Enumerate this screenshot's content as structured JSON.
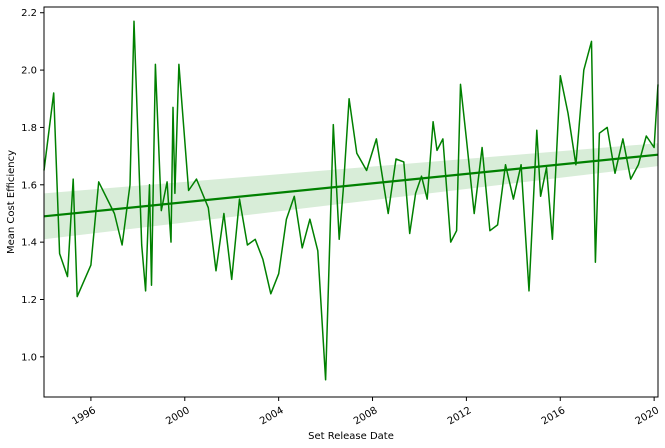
{
  "chart_data": {
    "type": "line",
    "title": "",
    "xlabel": "Set Release Date",
    "ylabel": "Mean Cost Efficiency",
    "xlim": [
      "1994-01-01",
      "2020-03-01"
    ],
    "ylim": [
      0.86,
      2.22
    ],
    "x_ticks": [
      "1996-01-01",
      "2000-01-01",
      "2004-01-01",
      "2008-01-01",
      "2012-01-01",
      "2016-01-01",
      "2020-01-01"
    ],
    "x_tick_labels": [
      "1996",
      "2000",
      "2004",
      "2008",
      "2012",
      "2016",
      "2020"
    ],
    "y_ticks": [
      1.0,
      1.2,
      1.4,
      1.6,
      1.8,
      2.0,
      2.2
    ],
    "y_tick_labels": [
      "1.0",
      "1.2",
      "1.4",
      "1.6",
      "1.8",
      "2.0",
      "2.2"
    ],
    "grid": false,
    "colors": {
      "line": "#008000",
      "trend": "#008000",
      "band": "#90cc90"
    },
    "series": [
      {
        "x": [
          "1994-01-01",
          "1994-06-01",
          "1994-09-01",
          "1995-01-01",
          "1995-04-01",
          "1995-06-01",
          "1996-01-01",
          "1996-05-01",
          "1997-01-01",
          "1997-05-01",
          "1997-09-01",
          "1997-11-01",
          "1998-03-01",
          "1998-05-01",
          "1998-07-01",
          "1998-08-01",
          "1998-10-01",
          "1999-01-01",
          "1999-04-01",
          "1999-06-01",
          "1999-07-01",
          "1999-08-01",
          "1999-10-01",
          "2000-03-01",
          "2000-07-01",
          "2001-01-01",
          "2001-05-01",
          "2001-09-01",
          "2002-01-01",
          "2002-05-01",
          "2002-09-01",
          "2003-01-01",
          "2003-05-01",
          "2003-09-01",
          "2004-01-01",
          "2004-05-01",
          "2004-09-01",
          "2005-01-01",
          "2005-05-01",
          "2005-09-01",
          "2006-01-01",
          "2006-05-01",
          "2006-08-01",
          "2006-10-01",
          "2007-01-01",
          "2007-05-01",
          "2007-10-01",
          "2008-03-01",
          "2008-09-01",
          "2009-01-01",
          "2009-05-01",
          "2009-08-01",
          "2009-11-01",
          "2010-02-01",
          "2010-05-01",
          "2010-08-01",
          "2010-10-01",
          "2011-01-01",
          "2011-05-01",
          "2011-08-01",
          "2011-10-01",
          "2012-01-01",
          "2012-05-01",
          "2012-09-01",
          "2013-01-01",
          "2013-05-01",
          "2013-09-01",
          "2014-01-01",
          "2014-05-01",
          "2014-09-01",
          "2015-01-01",
          "2015-03-01",
          "2015-06-01",
          "2015-09-01",
          "2016-01-01",
          "2016-05-01",
          "2016-09-01",
          "2017-01-01",
          "2017-05-01",
          "2017-07-01",
          "2017-09-01",
          "2018-01-01",
          "2018-05-01",
          "2018-09-01",
          "2019-01-01",
          "2019-05-01",
          "2019-09-01",
          "2020-01-01",
          "2020-03-01"
        ],
        "y": [
          1.65,
          1.92,
          1.36,
          1.28,
          1.62,
          1.21,
          1.32,
          1.61,
          1.5,
          1.39,
          1.6,
          2.17,
          1.39,
          1.23,
          1.6,
          1.25,
          2.02,
          1.51,
          1.61,
          1.4,
          1.87,
          1.57,
          2.02,
          1.58,
          1.62,
          1.52,
          1.3,
          1.5,
          1.27,
          1.55,
          1.39,
          1.41,
          1.34,
          1.22,
          1.29,
          1.48,
          1.56,
          1.38,
          1.48,
          1.37,
          0.92,
          1.81,
          1.41,
          1.58,
          1.9,
          1.71,
          1.65,
          1.76,
          1.5,
          1.69,
          1.68,
          1.43,
          1.57,
          1.63,
          1.55,
          1.82,
          1.72,
          1.76,
          1.4,
          1.44,
          1.95,
          1.76,
          1.5,
          1.73,
          1.44,
          1.46,
          1.67,
          1.55,
          1.67,
          1.23,
          1.79,
          1.56,
          1.66,
          1.41,
          1.98,
          1.85,
          1.67,
          2.0,
          2.1,
          1.33,
          1.78,
          1.8,
          1.64,
          1.76,
          1.62,
          1.67,
          1.77,
          1.73,
          1.95
        ]
      }
    ],
    "trend": {
      "x": [
        "1994-01-01",
        "2020-03-01"
      ],
      "y": [
        1.49,
        1.705
      ],
      "ci_lower": [
        1.41,
        1.665
      ],
      "ci_upper": [
        1.57,
        1.745
      ]
    }
  }
}
